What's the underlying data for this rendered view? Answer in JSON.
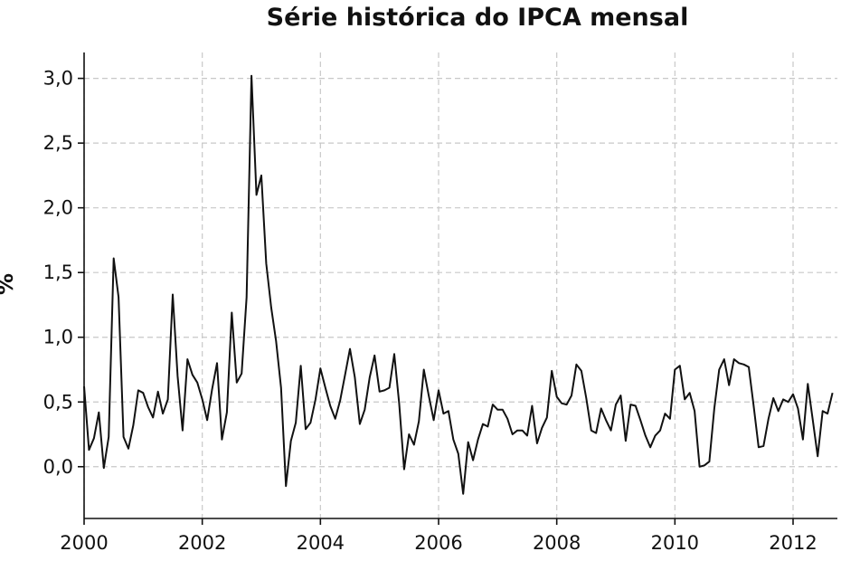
{
  "chart_data": {
    "type": "line",
    "title": "Série histórica do IPCA mensal",
    "xlabel": "",
    "ylabel": "%",
    "xlim": [
      2000,
      2012.75
    ],
    "ylim": [
      -0.4,
      3.2
    ],
    "grid": true,
    "x_ticks": [
      2000,
      2002,
      2004,
      2006,
      2008,
      2010,
      2012
    ],
    "x_tick_labels": [
      "2000",
      "2002",
      "2004",
      "2006",
      "2008",
      "2010",
      "2012"
    ],
    "y_ticks": [
      0.0,
      0.5,
      1.0,
      1.5,
      2.0,
      2.5,
      3.0
    ],
    "y_tick_labels": [
      "0,0",
      "0,5",
      "1,0",
      "1,5",
      "2,0",
      "2,5",
      "3,0"
    ],
    "series": [
      {
        "values": [
          0.62,
          0.13,
          0.22,
          0.42,
          -0.01,
          0.23,
          1.61,
          1.31,
          0.23,
          0.14,
          0.32,
          0.59,
          0.57,
          0.46,
          0.38,
          0.58,
          0.41,
          0.52,
          1.33,
          0.7,
          0.28,
          0.83,
          0.71,
          0.65,
          0.52,
          0.36,
          0.6,
          0.8,
          0.21,
          0.42,
          1.19,
          0.65,
          0.72,
          1.31,
          3.02,
          2.1,
          2.25,
          1.57,
          1.23,
          0.97,
          0.61,
          -0.15,
          0.2,
          0.34,
          0.78,
          0.29,
          0.34,
          0.52,
          0.76,
          0.61,
          0.47,
          0.37,
          0.51,
          0.71,
          0.91,
          0.69,
          0.33,
          0.44,
          0.69,
          0.86,
          0.58,
          0.59,
          0.61,
          0.87,
          0.49,
          -0.02,
          0.25,
          0.17,
          0.35,
          0.75,
          0.55,
          0.36,
          0.59,
          0.41,
          0.43,
          0.21,
          0.1,
          -0.21,
          0.19,
          0.05,
          0.21,
          0.33,
          0.31,
          0.48,
          0.44,
          0.44,
          0.37,
          0.25,
          0.28,
          0.28,
          0.24,
          0.47,
          0.18,
          0.3,
          0.38,
          0.74,
          0.54,
          0.49,
          0.48,
          0.55,
          0.79,
          0.74,
          0.53,
          0.28,
          0.26,
          0.45,
          0.36,
          0.28,
          0.48,
          0.55,
          0.2,
          0.48,
          0.47,
          0.36,
          0.24,
          0.15,
          0.24,
          0.28,
          0.41,
          0.37,
          0.75,
          0.78,
          0.52,
          0.57,
          0.43,
          0.0,
          0.01,
          0.04,
          0.45,
          0.75,
          0.83,
          0.63,
          0.83,
          0.8,
          0.79,
          0.77,
          0.47,
          0.15,
          0.16,
          0.37,
          0.53,
          0.43,
          0.52,
          0.5,
          0.56,
          0.45,
          0.21,
          0.64,
          0.36,
          0.08,
          0.43,
          0.41,
          0.57
        ]
      }
    ]
  }
}
